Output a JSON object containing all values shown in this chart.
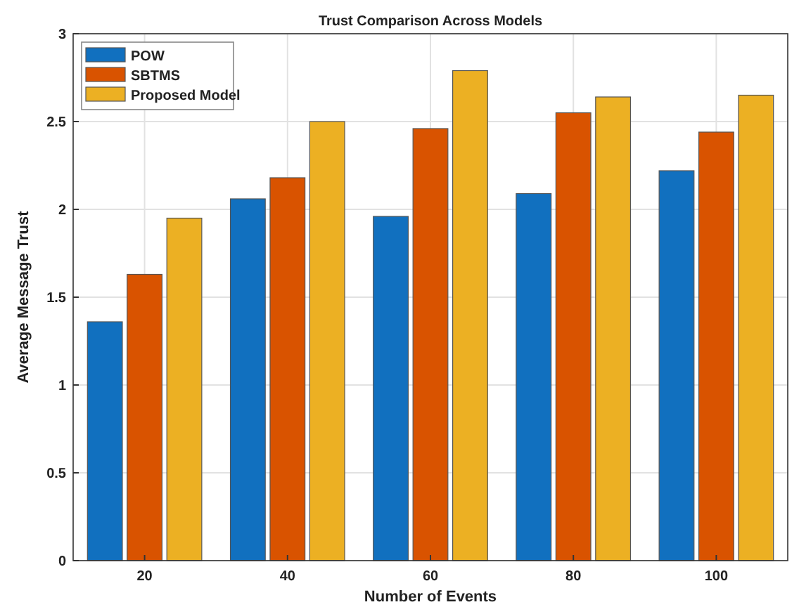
{
  "chart_data": {
    "type": "bar",
    "title": "Trust Comparison Across Models",
    "xlabel": "Number of Events",
    "ylabel": "Average Message Trust",
    "categories": [
      "20",
      "40",
      "60",
      "80",
      "100"
    ],
    "series": [
      {
        "name": "POW",
        "color": "#1170bf",
        "values": [
          1.36,
          2.06,
          1.96,
          2.09,
          2.22
        ]
      },
      {
        "name": "SBTMS",
        "color": "#d95300",
        "values": [
          1.63,
          2.18,
          2.46,
          2.55,
          2.44
        ]
      },
      {
        "name": "Proposed Model",
        "color": "#ecb023",
        "values": [
          1.95,
          2.5,
          2.79,
          2.64,
          2.65
        ]
      }
    ],
    "ylim": [
      0,
      3
    ],
    "yticks": [
      0,
      0.5,
      1,
      1.5,
      2,
      2.5,
      3
    ],
    "grid": true,
    "legend": "top left"
  }
}
